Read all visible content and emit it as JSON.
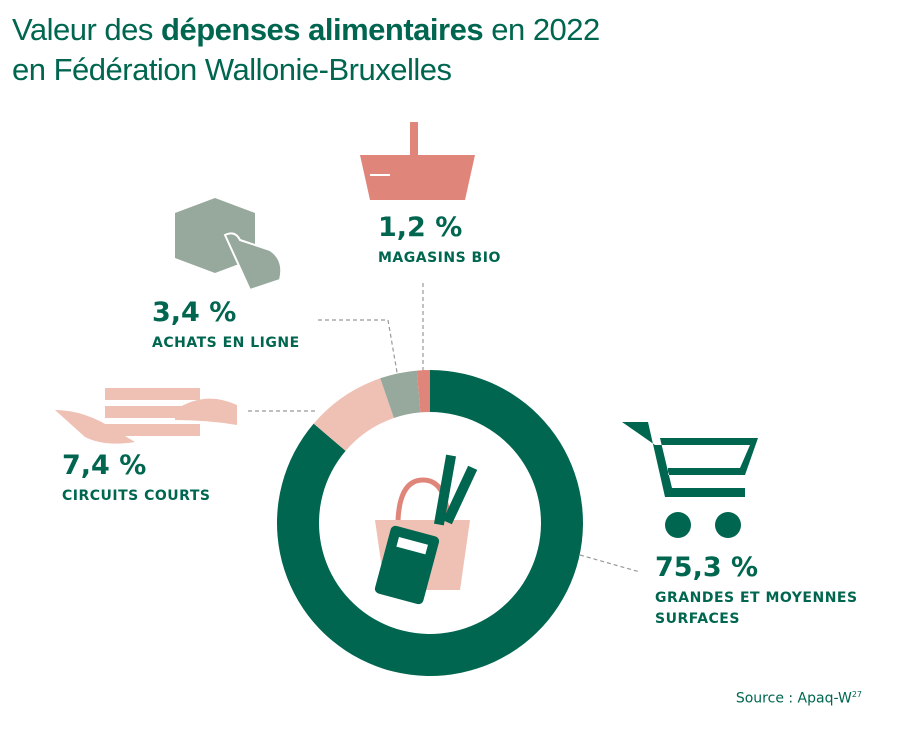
{
  "chart_data": {
    "type": "donut",
    "title": {
      "start": "Valeur des",
      "bold": "dépenses alimentaires",
      "end": "en 2022",
      "line2": "en Fédération Wallonie-Bruxelles"
    },
    "categories": [
      "GRANDES ET MOYENNES SURFACES",
      "CIRCUITS COURTS",
      "ACHATS EN LIGNE",
      "MAGASINS BIO"
    ],
    "values": [
      75.3,
      7.4,
      3.4,
      1.2
    ],
    "value_labels": [
      "75,3 %",
      "7,4 %",
      "3,4 %",
      "1,2 %"
    ],
    "colors": [
      "#00664f",
      "#efc0b4",
      "#97a89c",
      "#e0857a"
    ],
    "source": "Source : Apaq-W",
    "source_ref": "27"
  }
}
